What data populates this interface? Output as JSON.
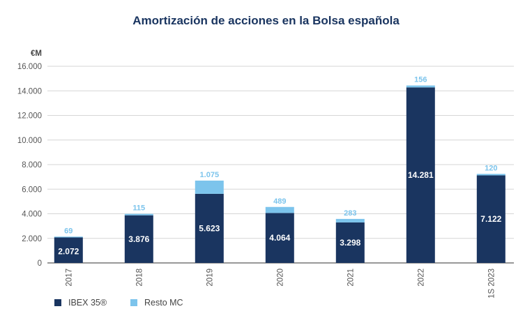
{
  "chart_data": {
    "type": "bar",
    "stacked": true,
    "title": "Amortización de acciones en la Bolsa española",
    "ylabel": "€M",
    "xlabel": "",
    "ylim": [
      0,
      16000
    ],
    "yticks": [
      "0",
      "2.000",
      "4.000",
      "6.000",
      "8.000",
      "10.000",
      "12.000",
      "14.000",
      "16.000"
    ],
    "grid": true,
    "legend_position": "bottom-left",
    "categories": [
      "2017",
      "2018",
      "2019",
      "2020",
      "2021",
      "2022",
      "1S 2023"
    ],
    "series": [
      {
        "name": "IBEX 35®",
        "color": "#1a3560",
        "values": [
          2072,
          3876,
          5623,
          4064,
          3298,
          14281,
          7122
        ],
        "labels": [
          "2.072",
          "3.876",
          "5.623",
          "4.064",
          "3.298",
          "14.281",
          "7.122"
        ]
      },
      {
        "name": "Resto MC",
        "color": "#7cc4ec",
        "values": [
          69,
          115,
          1075,
          489,
          283,
          156,
          120
        ],
        "labels": [
          "69",
          "115",
          "1.075",
          "489",
          "283",
          "156",
          "120"
        ]
      }
    ]
  }
}
